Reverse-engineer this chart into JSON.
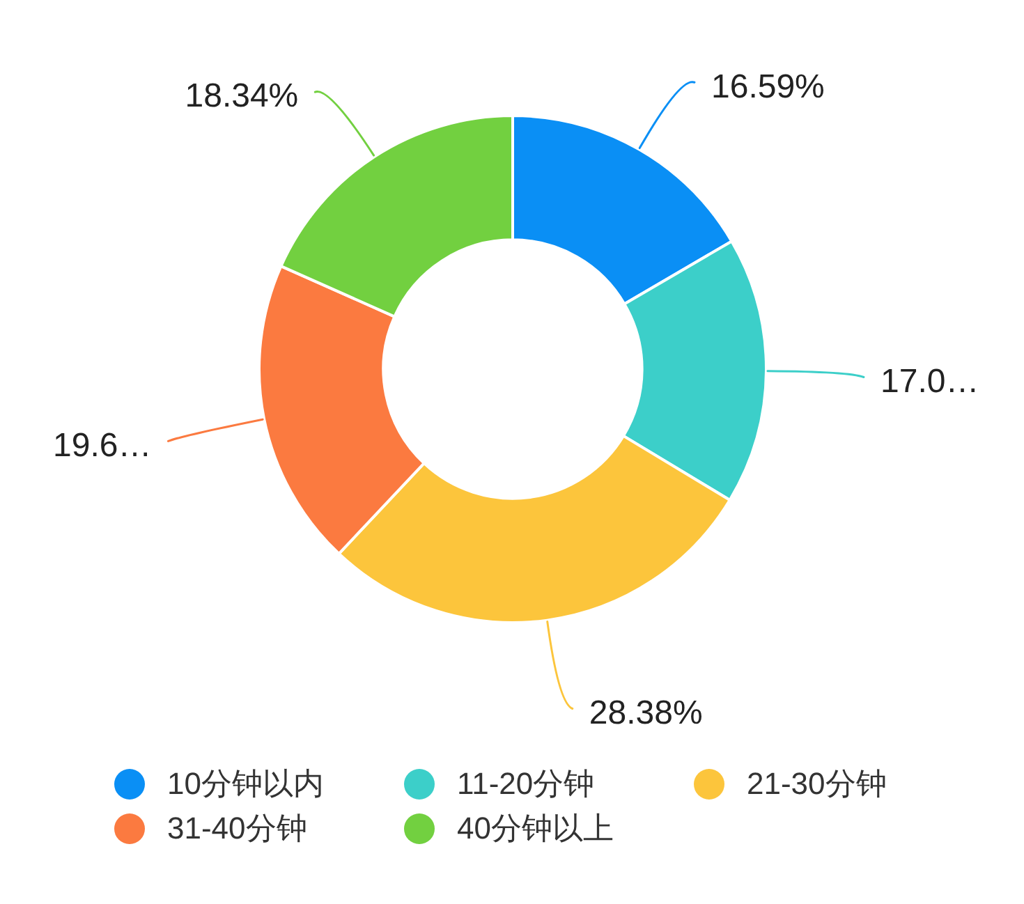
{
  "chart_data": {
    "type": "donut",
    "categories": [
      "10分钟以内",
      "11-20分钟",
      "21-30分钟",
      "31-40分钟",
      "40分钟以上"
    ],
    "values": [
      16.59,
      17.05,
      28.38,
      19.64,
      18.34
    ],
    "colors": [
      "#0a8ff5",
      "#3ccfc9",
      "#fcc53c",
      "#fb7a40",
      "#72d040"
    ],
    "value_labels": [
      "16.59%",
      "17.0…",
      "28.38%",
      "19.6…",
      "18.34%"
    ],
    "legend": "bottom"
  }
}
